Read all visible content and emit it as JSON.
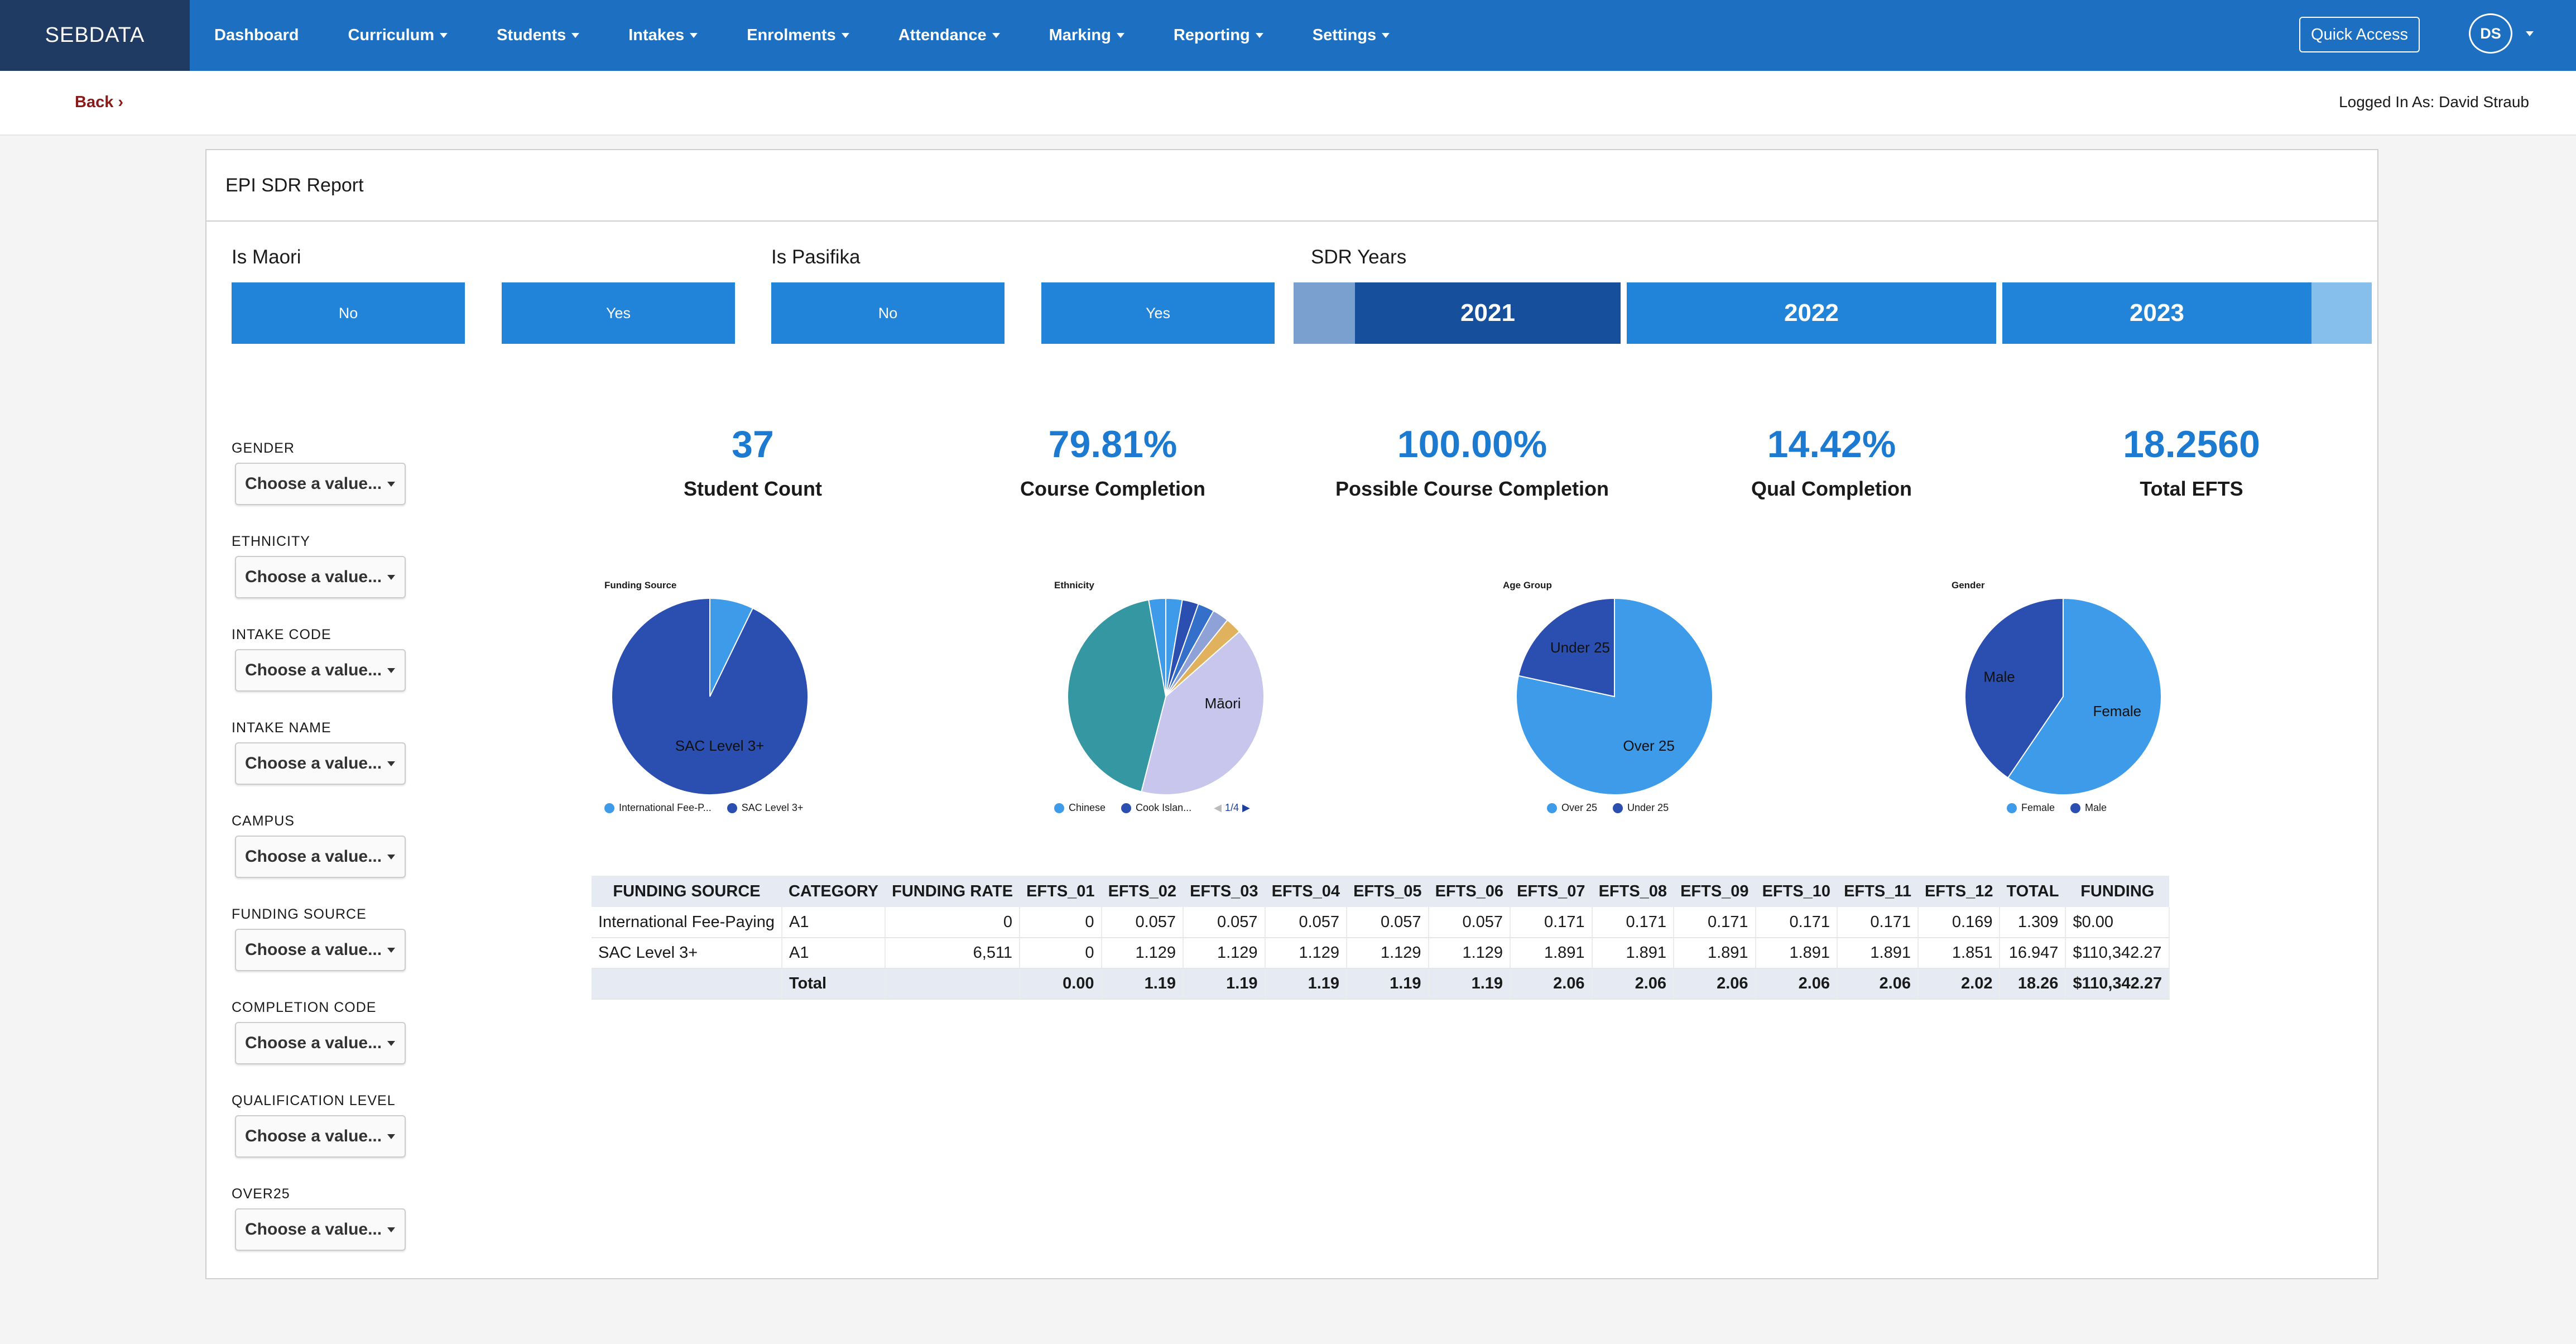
{
  "brand": "SEBDATA",
  "nav": [
    "Dashboard",
    "Curriculum",
    "Students",
    "Intakes",
    "Enrolments",
    "Attendance",
    "Marking",
    "Reporting",
    "Settings"
  ],
  "quick_access": "Quick Access",
  "avatar": "DS",
  "back": "Back",
  "logged_in": "Logged In As: David Straub",
  "report_title": "EPI SDR Report",
  "filters": {
    "maori": {
      "title": "Is Maori",
      "no": "No",
      "yes": "Yes"
    },
    "pasifika": {
      "title": "Is Pasifika",
      "no": "No",
      "yes": "Yes"
    },
    "years": {
      "title": "SDR Years",
      "items": [
        "2021",
        "2022",
        "2023"
      ],
      "selected": "2021"
    }
  },
  "side_filters": [
    {
      "label": "GENDER",
      "value": "Choose a value..."
    },
    {
      "label": "ETHNICITY",
      "value": "Choose a value..."
    },
    {
      "label": "INTAKE CODE",
      "value": "Choose a value..."
    },
    {
      "label": "INTAKE NAME",
      "value": "Choose a value..."
    },
    {
      "label": "CAMPUS",
      "value": "Choose a value..."
    },
    {
      "label": "FUNDING SOURCE",
      "value": "Choose a value..."
    },
    {
      "label": "COMPLETION CODE",
      "value": "Choose a value..."
    },
    {
      "label": "QUALIFICATION LEVEL",
      "value": "Choose a value..."
    },
    {
      "label": "OVER25",
      "value": "Choose a value..."
    }
  ],
  "kpis": [
    {
      "value": "37",
      "label": "Student Count"
    },
    {
      "value": "79.81%",
      "label": "Course Completion"
    },
    {
      "value": "100.00%",
      "label": "Possible Course Completion"
    },
    {
      "value": "14.42%",
      "label": "Qual Completion"
    },
    {
      "value": "18.2560",
      "label": "Total EFTS"
    }
  ],
  "colors": {
    "nav": "#1c6fc1",
    "brand_bg": "#1f3b63",
    "accent": "#1c7ad1",
    "button": "#2184d8",
    "year_selected": "#164f9c"
  },
  "chart_data": [
    {
      "type": "pie",
      "title": "Funding Source",
      "slices": [
        {
          "name": "International Fee-Paying",
          "legend": "International Fee-P...",
          "value": 0.072,
          "color": "#3d9be9"
        },
        {
          "name": "SAC Level 3+",
          "legend": "SAC Level 3+",
          "value": 0.928,
          "color": "#2a4fb0",
          "label": "SAC Level 3+"
        }
      ]
    },
    {
      "type": "pie",
      "title": "Ethnicity",
      "legend_page": "1/4",
      "slices": [
        {
          "name": "Chinese",
          "legend": "Chinese",
          "value": 0.027,
          "color": "#3d9be9"
        },
        {
          "name": "Cook Islands",
          "legend": "Cook Islan...",
          "value": 0.027,
          "color": "#2a4fb0"
        },
        {
          "name": "",
          "value": 0.027,
          "color": "#3470c9"
        },
        {
          "name": "",
          "value": 0.027,
          "color": "#8ea2d8"
        },
        {
          "name": "",
          "value": 0.027,
          "color": "#e0b25e"
        },
        {
          "name": "Māori",
          "value": 0.405,
          "color": "#c8c6ec",
          "label": "Māori"
        },
        {
          "name": "",
          "value": 0.432,
          "color": "#3597a2"
        },
        {
          "name": "",
          "value": 0.028,
          "color": "#3d9be9"
        }
      ]
    },
    {
      "type": "pie",
      "title": "Age Group",
      "slices": [
        {
          "name": "Over 25",
          "legend": "Over 25",
          "value": 0.784,
          "color": "#3d9be9",
          "label": "Over 25"
        },
        {
          "name": "Under 25",
          "legend": "Under 25",
          "value": 0.216,
          "color": "#2a4fb0",
          "label": "Under 25"
        }
      ]
    },
    {
      "type": "pie",
      "title": "Gender",
      "slices": [
        {
          "name": "Female",
          "legend": "Female",
          "value": 0.595,
          "color": "#3d9be9",
          "label": "Female"
        },
        {
          "name": "Male",
          "legend": "Male",
          "value": 0.405,
          "color": "#2a4fb0",
          "label": "Male"
        }
      ]
    }
  ],
  "table": {
    "headers": [
      "FUNDING SOURCE",
      "CATEGORY",
      "FUNDING RATE",
      "EFTS_01",
      "EFTS_02",
      "EFTS_03",
      "EFTS_04",
      "EFTS_05",
      "EFTS_06",
      "EFTS_07",
      "EFTS_08",
      "EFTS_09",
      "EFTS_10",
      "EFTS_11",
      "EFTS_12",
      "TOTAL",
      "FUNDING"
    ],
    "rows": [
      [
        "International Fee-Paying",
        "A1",
        "0",
        "0",
        "0.057",
        "0.057",
        "0.057",
        "0.057",
        "0.057",
        "0.171",
        "0.171",
        "0.171",
        "0.171",
        "0.171",
        "0.169",
        "1.309",
        "$0.00"
      ],
      [
        "SAC Level 3+",
        "A1",
        "6,511",
        "0",
        "1.129",
        "1.129",
        "1.129",
        "1.129",
        "1.129",
        "1.891",
        "1.891",
        "1.891",
        "1.891",
        "1.891",
        "1.851",
        "16.947",
        "$110,342.27"
      ]
    ],
    "total": [
      "",
      "Total",
      "",
      "0.00",
      "1.19",
      "1.19",
      "1.19",
      "1.19",
      "1.19",
      "2.06",
      "2.06",
      "2.06",
      "2.06",
      "2.06",
      "2.02",
      "18.26",
      "$110,342.27"
    ]
  }
}
